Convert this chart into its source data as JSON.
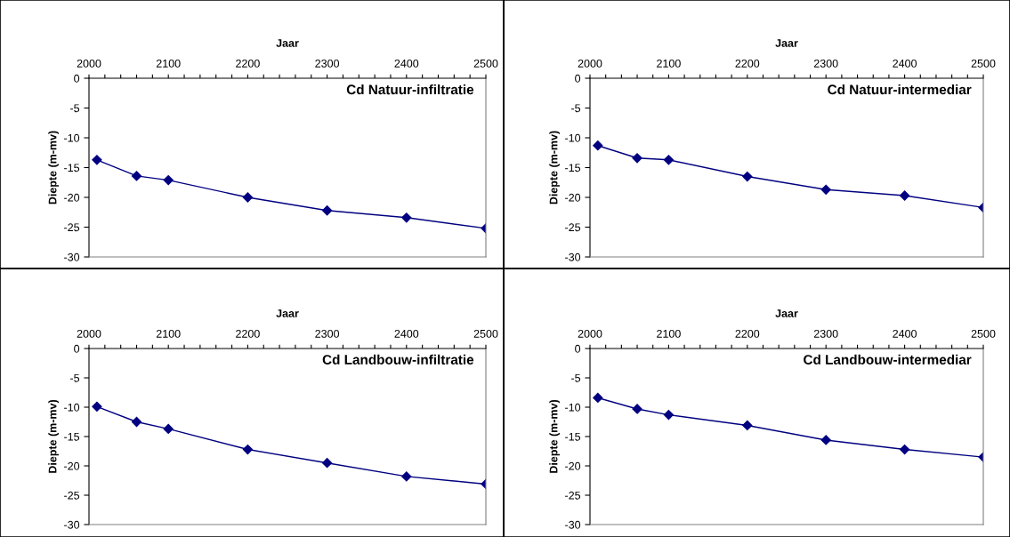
{
  "chart_data": [
    {
      "type": "line",
      "title": "Cd Natuur-infiltratie",
      "xlabel": "Jaar",
      "ylabel": "Diepte (m-mv)",
      "x": [
        2010,
        2060,
        2100,
        2200,
        2300,
        2400,
        2500
      ],
      "series": [
        {
          "color": "#000080",
          "values": [
            -13.7,
            -16.4,
            -17.1,
            -20.0,
            -22.2,
            -23.4,
            -25.2
          ]
        }
      ],
      "xlim": [
        2000,
        2500
      ],
      "xticks": [
        2000,
        {
          "value": 2020,
          "label": null
        },
        {
          "value": 2040,
          "label": null
        },
        {
          "value": 2060,
          "label": null
        },
        {
          "value": 2080,
          "label": null
        },
        2100,
        {
          "value": 2120,
          "label": null
        },
        {
          "value": 2140,
          "label": null
        },
        {
          "value": 2160,
          "label": null
        },
        {
          "value": 2180,
          "label": null
        },
        2200,
        {
          "value": 2220,
          "label": null
        },
        {
          "value": 2240,
          "label": null
        },
        {
          "value": 2260,
          "label": null
        },
        {
          "value": 2280,
          "label": null
        },
        2300,
        {
          "value": 2320,
          "label": null
        },
        {
          "value": 2340,
          "label": null
        },
        {
          "value": 2360,
          "label": null
        },
        {
          "value": 2380,
          "label": null
        },
        2400,
        {
          "value": 2420,
          "label": null
        },
        {
          "value": 2440,
          "label": null
        },
        {
          "value": 2460,
          "label": null
        },
        {
          "value": 2480,
          "label": null
        },
        2500
      ],
      "ylim": [
        -30,
        0
      ],
      "yticks": [
        -30,
        -25,
        -20,
        -15,
        -10,
        -5,
        0
      ],
      "marker": "diamond",
      "line_style": "solid",
      "grid": false,
      "legend": false
    },
    {
      "type": "line",
      "title": "Cd Natuur-intermediar",
      "xlabel": "Jaar",
      "ylabel": "Diepte (m-mv)",
      "x": [
        2010,
        2060,
        2100,
        2200,
        2300,
        2400,
        2500
      ],
      "series": [
        {
          "color": "#000080",
          "values": [
            -11.3,
            -13.4,
            -13.7,
            -16.5,
            -18.7,
            -19.7,
            -21.7
          ]
        }
      ],
      "xlim": [
        2000,
        2500
      ],
      "xticks": [
        2000,
        {
          "value": 2020,
          "label": null
        },
        {
          "value": 2040,
          "label": null
        },
        {
          "value": 2060,
          "label": null
        },
        {
          "value": 2080,
          "label": null
        },
        2100,
        {
          "value": 2120,
          "label": null
        },
        {
          "value": 2140,
          "label": null
        },
        {
          "value": 2160,
          "label": null
        },
        {
          "value": 2180,
          "label": null
        },
        2200,
        {
          "value": 2220,
          "label": null
        },
        {
          "value": 2240,
          "label": null
        },
        {
          "value": 2260,
          "label": null
        },
        {
          "value": 2280,
          "label": null
        },
        2300,
        {
          "value": 2320,
          "label": null
        },
        {
          "value": 2340,
          "label": null
        },
        {
          "value": 2360,
          "label": null
        },
        {
          "value": 2380,
          "label": null
        },
        2400,
        {
          "value": 2420,
          "label": null
        },
        {
          "value": 2440,
          "label": null
        },
        {
          "value": 2460,
          "label": null
        },
        {
          "value": 2480,
          "label": null
        },
        2500
      ],
      "ylim": [
        -30,
        0
      ],
      "yticks": [
        -30,
        -25,
        -20,
        -15,
        -10,
        -5,
        0
      ],
      "marker": "diamond",
      "line_style": "solid",
      "grid": false,
      "legend": false
    },
    {
      "type": "line",
      "title": "Cd Landbouw-infiltratie",
      "xlabel": "Jaar",
      "ylabel": "Diepte (m-mv)",
      "x": [
        2010,
        2060,
        2100,
        2200,
        2300,
        2400,
        2500
      ],
      "series": [
        {
          "color": "#000080",
          "values": [
            -9.9,
            -12.5,
            -13.7,
            -17.2,
            -19.5,
            -21.8,
            -23.1
          ]
        }
      ],
      "xlim": [
        2000,
        2500
      ],
      "xticks": [
        2000,
        {
          "value": 2020,
          "label": null
        },
        {
          "value": 2040,
          "label": null
        },
        {
          "value": 2060,
          "label": null
        },
        {
          "value": 2080,
          "label": null
        },
        2100,
        {
          "value": 2120,
          "label": null
        },
        {
          "value": 2140,
          "label": null
        },
        {
          "value": 2160,
          "label": null
        },
        {
          "value": 2180,
          "label": null
        },
        2200,
        {
          "value": 2220,
          "label": null
        },
        {
          "value": 2240,
          "label": null
        },
        {
          "value": 2260,
          "label": null
        },
        {
          "value": 2280,
          "label": null
        },
        2300,
        {
          "value": 2320,
          "label": null
        },
        {
          "value": 2340,
          "label": null
        },
        {
          "value": 2360,
          "label": null
        },
        {
          "value": 2380,
          "label": null
        },
        2400,
        {
          "value": 2420,
          "label": null
        },
        {
          "value": 2440,
          "label": null
        },
        {
          "value": 2460,
          "label": null
        },
        {
          "value": 2480,
          "label": null
        },
        2500
      ],
      "ylim": [
        -30,
        0
      ],
      "yticks": [
        -30,
        -25,
        -20,
        -15,
        -10,
        -5,
        0
      ],
      "marker": "diamond",
      "line_style": "solid",
      "grid": false,
      "legend": false
    },
    {
      "type": "line",
      "title": "Cd Landbouw-intermediar",
      "xlabel": "Jaar",
      "ylabel": "Diepte (m-mv)",
      "x": [
        2010,
        2060,
        2100,
        2200,
        2300,
        2400,
        2500
      ],
      "series": [
        {
          "color": "#000080",
          "values": [
            -8.4,
            -10.3,
            -11.3,
            -13.1,
            -15.6,
            -17.2,
            -18.5
          ]
        }
      ],
      "xlim": [
        2000,
        2500
      ],
      "xticks": [
        2000,
        {
          "value": 2020,
          "label": null
        },
        {
          "value": 2040,
          "label": null
        },
        {
          "value": 2060,
          "label": null
        },
        {
          "value": 2080,
          "label": null
        },
        2100,
        {
          "value": 2120,
          "label": null
        },
        {
          "value": 2140,
          "label": null
        },
        {
          "value": 2160,
          "label": null
        },
        {
          "value": 2180,
          "label": null
        },
        2200,
        {
          "value": 2220,
          "label": null
        },
        {
          "value": 2240,
          "label": null
        },
        {
          "value": 2260,
          "label": null
        },
        {
          "value": 2280,
          "label": null
        },
        2300,
        {
          "value": 2320,
          "label": null
        },
        {
          "value": 2340,
          "label": null
        },
        {
          "value": 2360,
          "label": null
        },
        {
          "value": 2380,
          "label": null
        },
        2400,
        {
          "value": 2420,
          "label": null
        },
        {
          "value": 2440,
          "label": null
        },
        {
          "value": 2460,
          "label": null
        },
        {
          "value": 2480,
          "label": null
        },
        2500
      ],
      "ylim": [
        -30,
        0
      ],
      "yticks": [
        -30,
        -25,
        -20,
        -15,
        -10,
        -5,
        0
      ],
      "marker": "diamond",
      "line_style": "solid",
      "grid": false,
      "legend": false
    }
  ]
}
